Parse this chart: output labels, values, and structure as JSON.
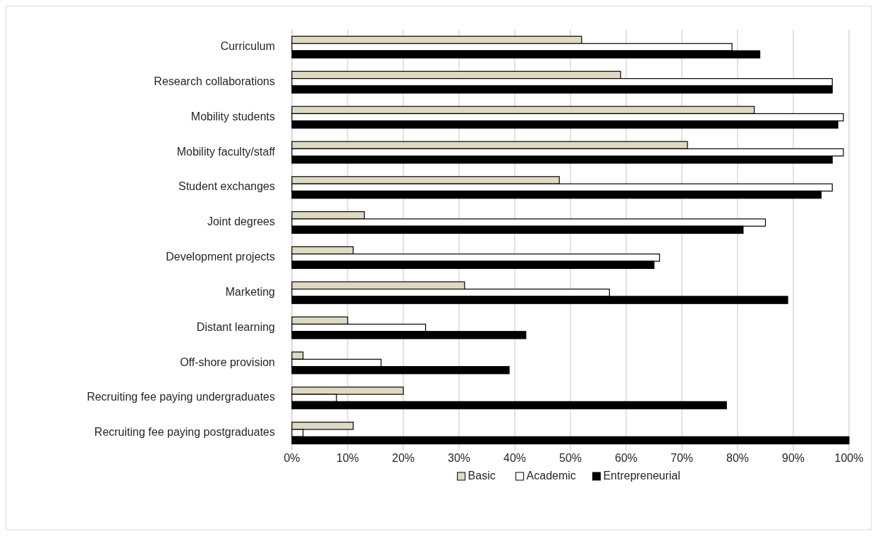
{
  "chart_data": {
    "type": "bar",
    "orientation": "horizontal",
    "categories": [
      "Curriculum",
      "Research collaborations",
      "Mobility students",
      "Mobility faculty/staff",
      "Student exchanges",
      "Joint degrees",
      "Development projects",
      "Marketing",
      "Distant learning",
      "Off-shore provision",
      "Recruiting fee paying undergraduates",
      "Recruiting fee paying postgraduates"
    ],
    "series": [
      {
        "name": "Basic",
        "color": "#ddd9c3",
        "values": [
          52,
          59,
          83,
          71,
          48,
          13,
          11,
          31,
          10,
          2,
          20,
          11
        ]
      },
      {
        "name": "Academic",
        "color": "#ffffff",
        "values": [
          79,
          97,
          99,
          99,
          97,
          85,
          66,
          57,
          24,
          16,
          8,
          2
        ]
      },
      {
        "name": "Entrepreneurial",
        "color": "#000000",
        "values": [
          84,
          97,
          98,
          97,
          95,
          81,
          65,
          89,
          42,
          39,
          78,
          100
        ]
      }
    ],
    "xlim": [
      0,
      100
    ],
    "xticks": [
      {
        "value": 0,
        "label": "0%"
      },
      {
        "value": 10,
        "label": "10%"
      },
      {
        "value": 20,
        "label": "20%"
      },
      {
        "value": 30,
        "label": "30%"
      },
      {
        "value": 40,
        "label": "40%"
      },
      {
        "value": 50,
        "label": "50%"
      },
      {
        "value": 60,
        "label": "60%"
      },
      {
        "value": 70,
        "label": "70%"
      },
      {
        "value": 80,
        "label": "80%"
      },
      {
        "value": 90,
        "label": "90%"
      },
      {
        "value": 100,
        "label": "100%"
      }
    ],
    "grid": "x",
    "legend": "bottom"
  }
}
